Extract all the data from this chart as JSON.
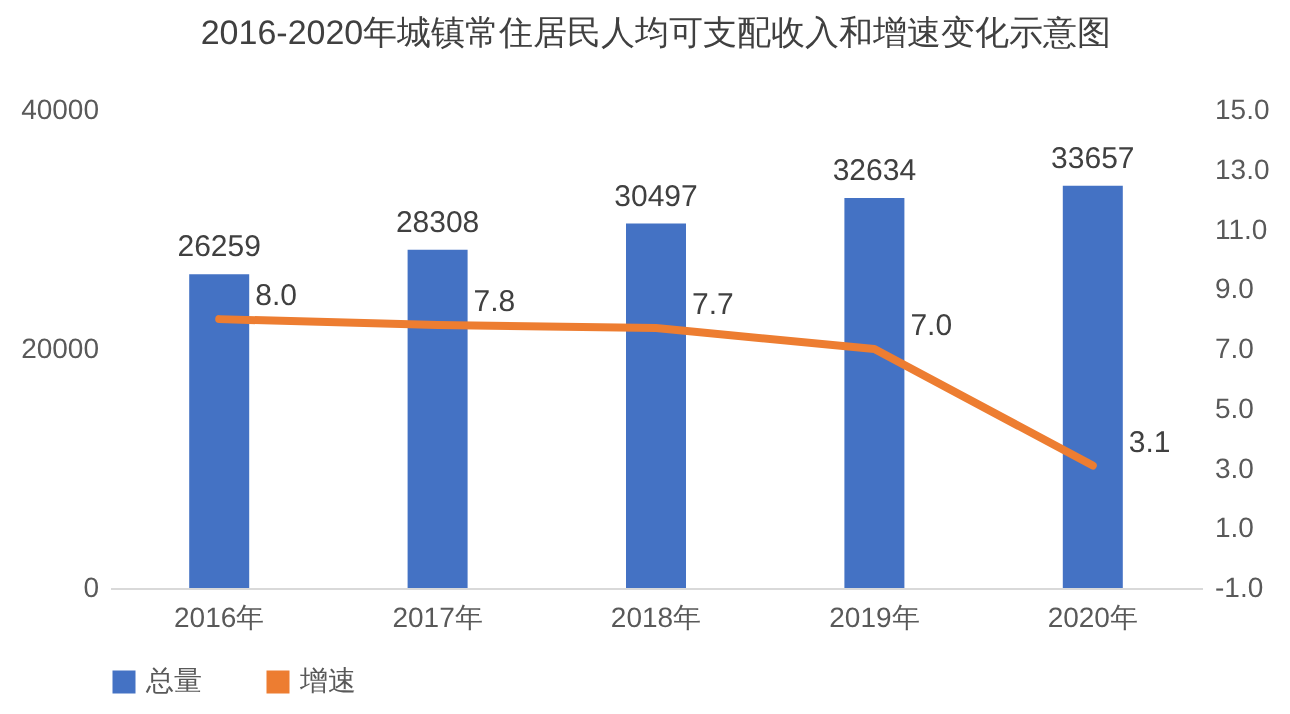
{
  "chart_data": {
    "type": "bar",
    "title": "2016-2020年城镇常住居民人均可支配收入和增速变化示意图",
    "categories": [
      "2016年",
      "2017年",
      "2018年",
      "2019年",
      "2020年"
    ],
    "series": [
      {
        "name": "总量",
        "color": "#4472c4",
        "values": [
          26259,
          28308,
          30497,
          32634,
          33657
        ],
        "value_labels": [
          "26259",
          "28308",
          "30497",
          "32634",
          "33657"
        ]
      },
      {
        "name": "增速",
        "type": "line",
        "axis": "y2",
        "color": "#ed7d31",
        "values": [
          8.0,
          7.8,
          7.7,
          7.0,
          3.1
        ],
        "value_labels": [
          "8.0",
          "7.8",
          "7.7",
          "7.0",
          "3.1"
        ]
      }
    ],
    "ylim": [
      0,
      40000
    ],
    "yticks": [
      0,
      20000,
      40000
    ],
    "y2lim": [
      -1,
      15
    ],
    "y2ticks": [
      {
        "value": -1,
        "label": "-1.0"
      },
      {
        "value": 1,
        "label": "1.0"
      },
      {
        "value": 3,
        "label": "3.0"
      },
      {
        "value": 5,
        "label": "5.0"
      },
      {
        "value": 7,
        "label": "7.0"
      },
      {
        "value": 9,
        "label": "9.0"
      },
      {
        "value": 11,
        "label": "11.0"
      },
      {
        "value": 13,
        "label": "13.0"
      },
      {
        "value": 15,
        "label": "15.0"
      }
    ],
    "grid": false,
    "legend": "bottom",
    "marker": "none",
    "line_style": "solid"
  }
}
